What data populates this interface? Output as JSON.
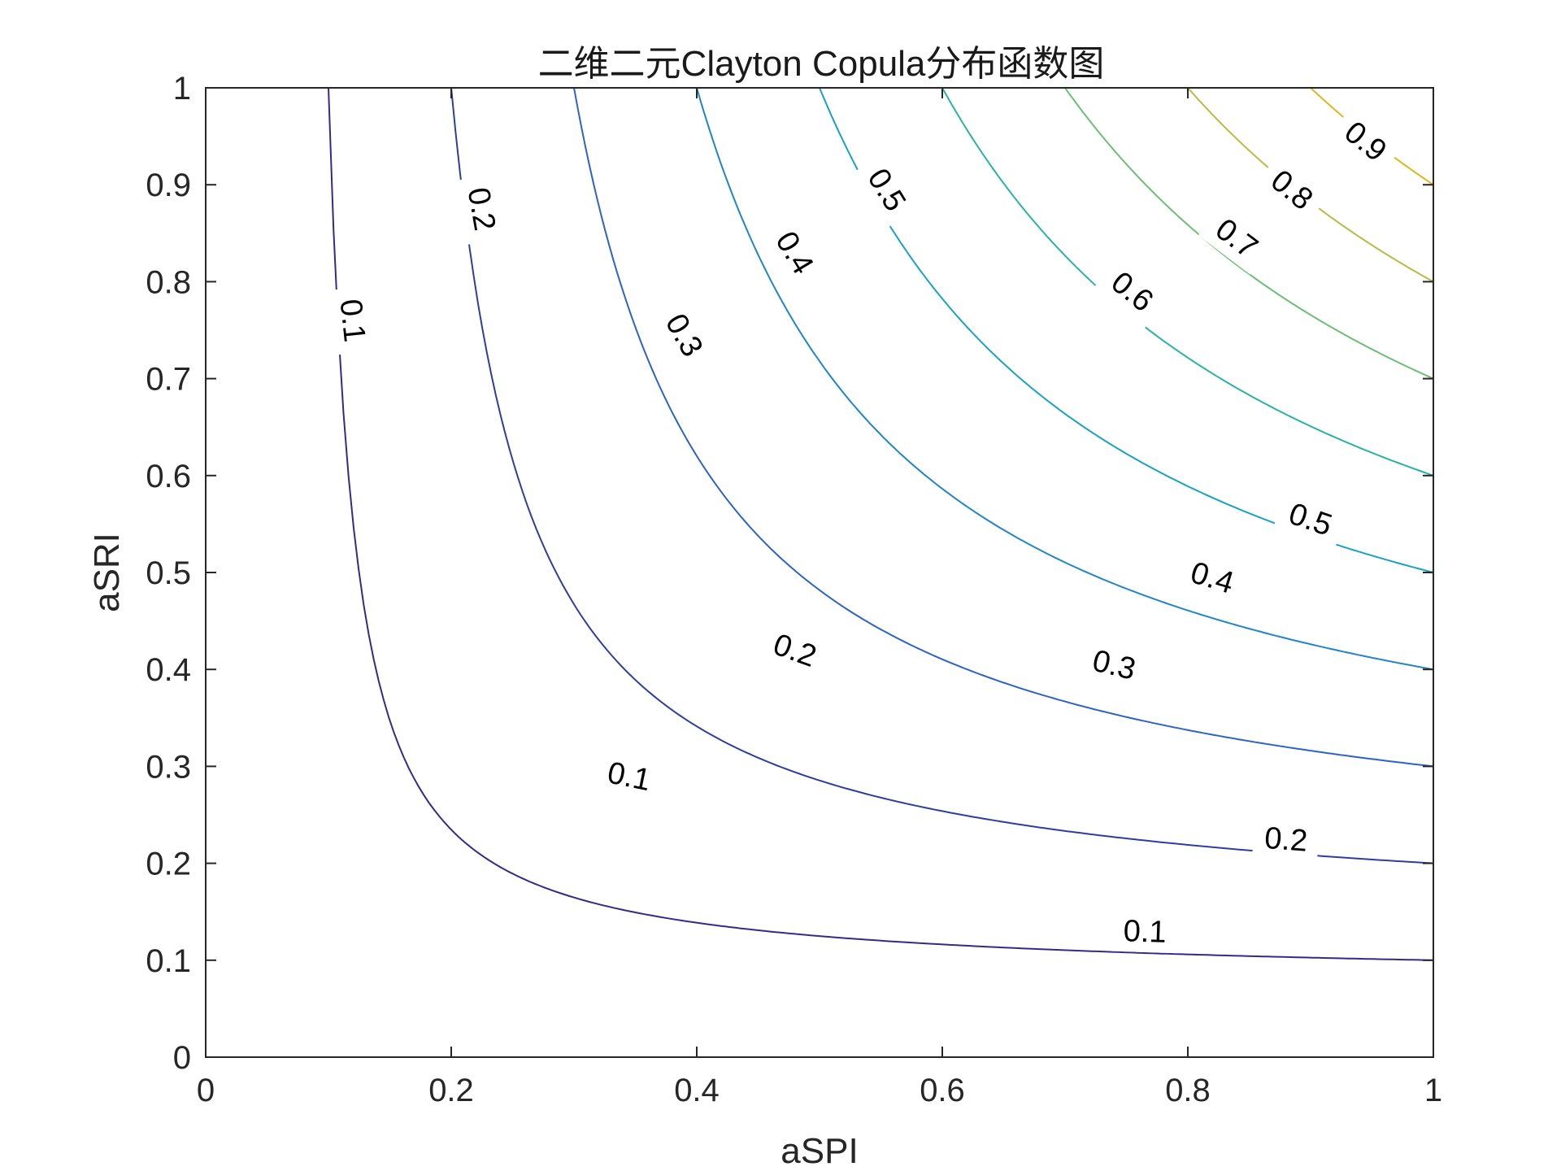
{
  "chart_data": {
    "type": "contour",
    "title": "二维二元Clayton Copula分布函数图",
    "xlabel": "aSPI",
    "ylabel": "aSRI",
    "xlim": [
      0,
      1
    ],
    "ylim": [
      0,
      1
    ],
    "x_ticks": [
      "0",
      "0.2",
      "0.4",
      "0.6",
      "0.8",
      "1"
    ],
    "y_ticks": [
      "0",
      "0.1",
      "0.2",
      "0.3",
      "0.4",
      "0.5",
      "0.6",
      "0.7",
      "0.8",
      "0.9",
      "1"
    ],
    "grid": false,
    "box": true,
    "levels": [
      {
        "level": 0.1,
        "color": "#352a87"
      },
      {
        "level": 0.2,
        "color": "#2e3ea0"
      },
      {
        "level": 0.3,
        "color": "#2d62c7"
      },
      {
        "level": 0.4,
        "color": "#2085c9"
      },
      {
        "level": 0.5,
        "color": "#17a3c1"
      },
      {
        "level": 0.6,
        "color": "#2ab3a0"
      },
      {
        "level": 0.7,
        "color": "#6bbe74"
      },
      {
        "level": 0.8,
        "color": "#b4bd45"
      },
      {
        "level": 0.9,
        "color": "#e2b51f"
      }
    ],
    "contour_labels": [
      {
        "text": "0.1",
        "level": 0.1,
        "x": 0.12,
        "y": 0.76
      },
      {
        "text": "0.1",
        "level": 0.1,
        "x": 0.345,
        "y": 0.29
      },
      {
        "text": "0.1",
        "level": 0.1,
        "x": 0.765,
        "y": 0.13
      },
      {
        "text": "0.2",
        "level": 0.2,
        "x": 0.225,
        "y": 0.875
      },
      {
        "text": "0.2",
        "level": 0.2,
        "x": 0.48,
        "y": 0.42
      },
      {
        "text": "0.2",
        "level": 0.2,
        "x": 0.88,
        "y": 0.225
      },
      {
        "text": "0.3",
        "level": 0.3,
        "x": 0.39,
        "y": 0.745
      },
      {
        "text": "0.3",
        "level": 0.3,
        "x": 0.74,
        "y": 0.405
      },
      {
        "text": "0.4",
        "level": 0.4,
        "x": 0.48,
        "y": 0.83
      },
      {
        "text": "0.4",
        "level": 0.4,
        "x": 0.82,
        "y": 0.495
      },
      {
        "text": "0.5",
        "level": 0.5,
        "x": 0.555,
        "y": 0.895
      },
      {
        "text": "0.5",
        "level": 0.5,
        "x": 0.9,
        "y": 0.555
      },
      {
        "text": "0.6",
        "level": 0.6,
        "x": 0.755,
        "y": 0.79
      },
      {
        "text": "0.7",
        "level": 0.7,
        "x": 0.84,
        "y": 0.845
      },
      {
        "text": "0.8",
        "level": 0.8,
        "x": 0.885,
        "y": 0.895
      },
      {
        "text": "0.9",
        "level": 0.9,
        "x": 0.945,
        "y": 0.945
      }
    ]
  }
}
